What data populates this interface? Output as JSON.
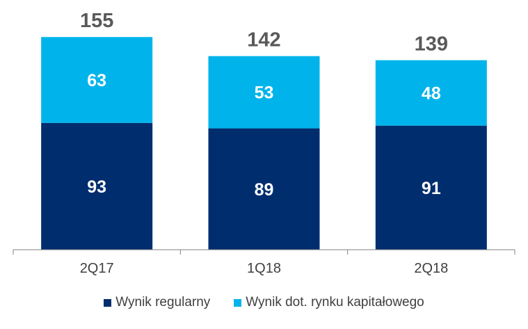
{
  "chart_data": {
    "type": "bar",
    "stacked": true,
    "categories": [
      "2Q17",
      "1Q18",
      "2Q18"
    ],
    "series": [
      {
        "name": "Wynik regularny",
        "values": [
          93,
          89,
          91
        ],
        "color": "#002D6E"
      },
      {
        "name": "Wynik dot. rynku kapitałowego",
        "values": [
          63,
          53,
          48
        ],
        "color": "#00B4EB"
      }
    ],
    "totals": [
      155,
      142,
      139
    ],
    "ylim": [
      0,
      160
    ],
    "grid": false,
    "legend_position": "bottom",
    "label_color": "#FFFFFF",
    "total_color": "#595959"
  }
}
